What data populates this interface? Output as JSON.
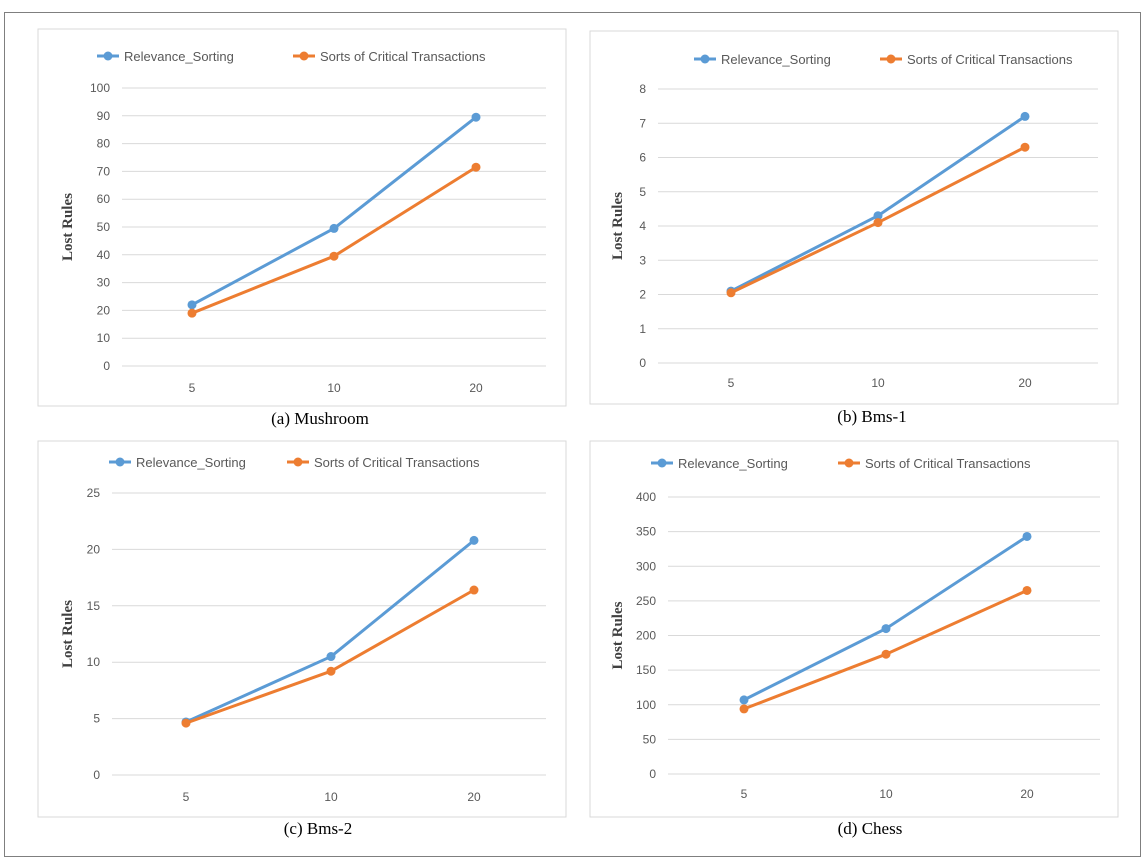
{
  "colors": {
    "series_1": "#5b9bd5",
    "series_2": "#ed7d31",
    "gridline": "#d9d9d9",
    "chart_border": "#d9d9d9"
  },
  "chart_data": [
    {
      "type": "line",
      "caption": "(a)  Mushroom",
      "title": "",
      "categories": [
        "5",
        "10",
        "20"
      ],
      "series": [
        {
          "name": "Relevance_Sorting",
          "values": [
            22,
            49.5,
            89.5
          ]
        },
        {
          "name": "Sorts of Critical Transactions",
          "values": [
            19,
            39.5,
            71.5
          ]
        }
      ],
      "ylabel": "Lost Rules",
      "ylim": [
        0,
        100
      ],
      "yticks": [
        "0",
        "10",
        "20",
        "30",
        "40",
        "50",
        "60",
        "70",
        "80",
        "90",
        "100"
      ],
      "grid": true,
      "legend": "top"
    },
    {
      "type": "line",
      "caption": "(b)  Bms-1",
      "title": "",
      "categories": [
        "5",
        "10",
        "20"
      ],
      "series": [
        {
          "name": "Relevance_Sorting",
          "values": [
            2.1,
            4.3,
            7.2
          ]
        },
        {
          "name": "Sorts of Critical Transactions",
          "values": [
            2.05,
            4.1,
            6.3
          ]
        }
      ],
      "ylabel": "Lost Rules",
      "ylim": [
        0,
        8
      ],
      "yticks": [
        "0",
        "1",
        "2",
        "3",
        "4",
        "5",
        "6",
        "7",
        "8"
      ],
      "grid": true,
      "legend": "top"
    },
    {
      "type": "line",
      "caption": "(c)  Bms-2",
      "title": "",
      "categories": [
        "5",
        "10",
        "20"
      ],
      "series": [
        {
          "name": "Relevance_Sorting",
          "values": [
            4.7,
            10.5,
            20.8
          ]
        },
        {
          "name": "Sorts of Critical Transactions",
          "values": [
            4.6,
            9.2,
            16.4
          ]
        }
      ],
      "ylabel": "Lost Rules",
      "ylim": [
        0,
        25
      ],
      "yticks": [
        "0",
        "5",
        "10",
        "15",
        "20",
        "25"
      ],
      "grid": true,
      "legend": "top"
    },
    {
      "type": "line",
      "caption": "(d)  Chess",
      "title": "",
      "categories": [
        "5",
        "10",
        "20"
      ],
      "series": [
        {
          "name": "Relevance_Sorting",
          "values": [
            107,
            210,
            343
          ]
        },
        {
          "name": "Sorts of Critical Transactions",
          "values": [
            94,
            173,
            265
          ]
        }
      ],
      "ylabel": "Lost Rules",
      "ylim": [
        0,
        400
      ],
      "yticks": [
        "0",
        "50",
        "100",
        "150",
        "200",
        "250",
        "300",
        "350",
        "400"
      ],
      "grid": true,
      "legend": "top"
    }
  ]
}
